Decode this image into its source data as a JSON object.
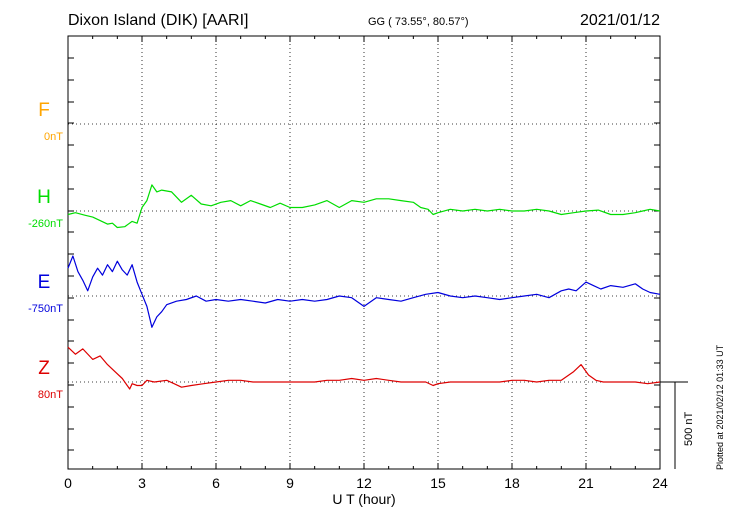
{
  "header": {
    "station": "Dixon Island (DIK)  [AARI]",
    "coords": "GG ( 73.55°,  80.57°)",
    "date": "2021/01/12"
  },
  "side_note": "Plotted at 2021/02/12 01:33 UT",
  "scale_label": "500 nT",
  "colors": {
    "F": "#ffa500",
    "H": "#00dd00",
    "E": "#0000dd",
    "Z": "#dd0000",
    "grid": "#000000"
  },
  "chart_data": {
    "type": "line",
    "xlabel": "U T (hour)",
    "xlim": [
      0,
      24
    ],
    "x_ticks": [
      0,
      3,
      6,
      9,
      12,
      15,
      18,
      21,
      24
    ],
    "scale_bar_nT": 500,
    "grid": "dotted",
    "series": [
      {
        "name": "F",
        "baseline_label": "0nT",
        "points": []
      },
      {
        "name": "H",
        "baseline_label": "-260nT",
        "points": [
          [
            0,
            -20
          ],
          [
            0.3,
            -10
          ],
          [
            0.7,
            -25
          ],
          [
            1.0,
            -35
          ],
          [
            1.3,
            -55
          ],
          [
            1.6,
            -75
          ],
          [
            1.8,
            -70
          ],
          [
            2.0,
            -95
          ],
          [
            2.3,
            -90
          ],
          [
            2.6,
            -60
          ],
          [
            2.8,
            -70
          ],
          [
            3.0,
            20
          ],
          [
            3.2,
            60
          ],
          [
            3.4,
            150
          ],
          [
            3.6,
            110
          ],
          [
            3.8,
            120
          ],
          [
            4.2,
            110
          ],
          [
            4.6,
            50
          ],
          [
            5.0,
            90
          ],
          [
            5.4,
            40
          ],
          [
            5.8,
            30
          ],
          [
            6.2,
            50
          ],
          [
            6.6,
            60
          ],
          [
            7.0,
            30
          ],
          [
            7.4,
            60
          ],
          [
            7.8,
            40
          ],
          [
            8.2,
            20
          ],
          [
            8.6,
            45
          ],
          [
            9.0,
            20
          ],
          [
            9.5,
            20
          ],
          [
            10.0,
            35
          ],
          [
            10.5,
            60
          ],
          [
            11.0,
            20
          ],
          [
            11.5,
            60
          ],
          [
            12.0,
            50
          ],
          [
            12.5,
            70
          ],
          [
            13.0,
            70
          ],
          [
            13.5,
            60
          ],
          [
            14.0,
            50
          ],
          [
            14.3,
            20
          ],
          [
            14.6,
            10
          ],
          [
            14.8,
            -20
          ],
          [
            15.0,
            -10
          ],
          [
            15.5,
            10
          ],
          [
            16.0,
            0
          ],
          [
            16.5,
            10
          ],
          [
            17.0,
            0
          ],
          [
            17.5,
            10
          ],
          [
            18.0,
            0
          ],
          [
            18.5,
            0
          ],
          [
            19.0,
            10
          ],
          [
            19.5,
            0
          ],
          [
            20.0,
            -20
          ],
          [
            20.5,
            -10
          ],
          [
            21.0,
            0
          ],
          [
            21.5,
            5
          ],
          [
            22.0,
            -20
          ],
          [
            22.5,
            -20
          ],
          [
            23.0,
            -10
          ],
          [
            23.3,
            0
          ],
          [
            23.6,
            10
          ],
          [
            24.0,
            0
          ]
        ]
      },
      {
        "name": "E",
        "baseline_label": "-750nT",
        "points": [
          [
            0,
            160
          ],
          [
            0.2,
            230
          ],
          [
            0.4,
            140
          ],
          [
            0.6,
            90
          ],
          [
            0.8,
            30
          ],
          [
            1.0,
            110
          ],
          [
            1.2,
            160
          ],
          [
            1.4,
            120
          ],
          [
            1.6,
            180
          ],
          [
            1.8,
            140
          ],
          [
            2.0,
            200
          ],
          [
            2.2,
            150
          ],
          [
            2.4,
            120
          ],
          [
            2.6,
            180
          ],
          [
            2.8,
            80
          ],
          [
            3.0,
            10
          ],
          [
            3.2,
            -60
          ],
          [
            3.4,
            -180
          ],
          [
            3.6,
            -120
          ],
          [
            3.8,
            -90
          ],
          [
            4.0,
            -50
          ],
          [
            4.4,
            -30
          ],
          [
            4.8,
            -20
          ],
          [
            5.2,
            0
          ],
          [
            5.6,
            -30
          ],
          [
            6.0,
            -20
          ],
          [
            6.5,
            -30
          ],
          [
            7.0,
            -20
          ],
          [
            7.5,
            -30
          ],
          [
            8.0,
            -40
          ],
          [
            8.5,
            -20
          ],
          [
            9.0,
            -30
          ],
          [
            9.5,
            -20
          ],
          [
            10.0,
            -30
          ],
          [
            10.5,
            -20
          ],
          [
            11.0,
            0
          ],
          [
            11.5,
            -10
          ],
          [
            12.0,
            -60
          ],
          [
            12.5,
            -10
          ],
          [
            13.0,
            -20
          ],
          [
            13.5,
            -30
          ],
          [
            14.0,
            -10
          ],
          [
            14.5,
            10
          ],
          [
            15.0,
            20
          ],
          [
            15.5,
            0
          ],
          [
            16.0,
            -10
          ],
          [
            16.5,
            0
          ],
          [
            17.0,
            -10
          ],
          [
            17.5,
            -20
          ],
          [
            18.0,
            -10
          ],
          [
            18.5,
            0
          ],
          [
            19.0,
            10
          ],
          [
            19.5,
            -10
          ],
          [
            20.0,
            30
          ],
          [
            20.3,
            40
          ],
          [
            20.6,
            30
          ],
          [
            21.0,
            80
          ],
          [
            21.3,
            60
          ],
          [
            21.6,
            40
          ],
          [
            22.0,
            60
          ],
          [
            22.5,
            50
          ],
          [
            23.0,
            70
          ],
          [
            23.3,
            40
          ],
          [
            23.6,
            20
          ],
          [
            24.0,
            10
          ]
        ]
      },
      {
        "name": "Z",
        "baseline_label": "80nT",
        "points": [
          [
            0,
            200
          ],
          [
            0.3,
            160
          ],
          [
            0.6,
            190
          ],
          [
            1.0,
            130
          ],
          [
            1.3,
            150
          ],
          [
            1.6,
            100
          ],
          [
            1.9,
            60
          ],
          [
            2.2,
            20
          ],
          [
            2.4,
            -20
          ],
          [
            2.5,
            -40
          ],
          [
            2.6,
            -10
          ],
          [
            2.8,
            -20
          ],
          [
            3.0,
            -20
          ],
          [
            3.2,
            10
          ],
          [
            3.5,
            0
          ],
          [
            4.0,
            10
          ],
          [
            4.3,
            -10
          ],
          [
            4.6,
            -30
          ],
          [
            5.0,
            -20
          ],
          [
            5.5,
            -10
          ],
          [
            6.0,
            0
          ],
          [
            6.5,
            10
          ],
          [
            7.0,
            10
          ],
          [
            7.5,
            0
          ],
          [
            8.0,
            0
          ],
          [
            8.5,
            0
          ],
          [
            9.0,
            0
          ],
          [
            9.5,
            0
          ],
          [
            10.0,
            0
          ],
          [
            10.5,
            10
          ],
          [
            11.0,
            10
          ],
          [
            11.5,
            20
          ],
          [
            12.0,
            10
          ],
          [
            12.5,
            20
          ],
          [
            13.0,
            10
          ],
          [
            13.5,
            0
          ],
          [
            14.0,
            0
          ],
          [
            14.5,
            0
          ],
          [
            14.8,
            -20
          ],
          [
            15.0,
            -10
          ],
          [
            15.5,
            0
          ],
          [
            16.0,
            0
          ],
          [
            16.5,
            0
          ],
          [
            17.0,
            0
          ],
          [
            17.5,
            0
          ],
          [
            18.0,
            10
          ],
          [
            18.5,
            10
          ],
          [
            19.0,
            0
          ],
          [
            19.5,
            10
          ],
          [
            20.0,
            10
          ],
          [
            20.5,
            60
          ],
          [
            20.8,
            100
          ],
          [
            21.1,
            40
          ],
          [
            21.4,
            10
          ],
          [
            21.7,
            0
          ],
          [
            22.0,
            0
          ],
          [
            22.5,
            0
          ],
          [
            23.0,
            0
          ],
          [
            23.5,
            -10
          ],
          [
            24.0,
            0
          ]
        ]
      }
    ]
  }
}
